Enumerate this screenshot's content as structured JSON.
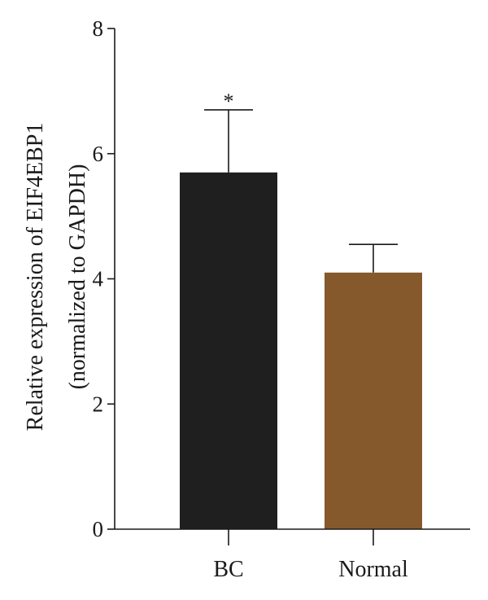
{
  "chart_data": {
    "type": "bar",
    "categories": [
      "BC",
      "Normal"
    ],
    "values": [
      5.7,
      4.1
    ],
    "error_plus": [
      1.0,
      0.45
    ],
    "colors": [
      "#1f1f1f",
      "#85592b"
    ],
    "ylabel_line1": "Relative expression of EIF4EBP1",
    "ylabel_line2": "(normalized to GAPDH)",
    "ylim": [
      0,
      8
    ],
    "yticks": [
      "0",
      "2",
      "4",
      "6",
      "8"
    ],
    "annotations": [
      "*",
      ""
    ],
    "grid": false
  }
}
